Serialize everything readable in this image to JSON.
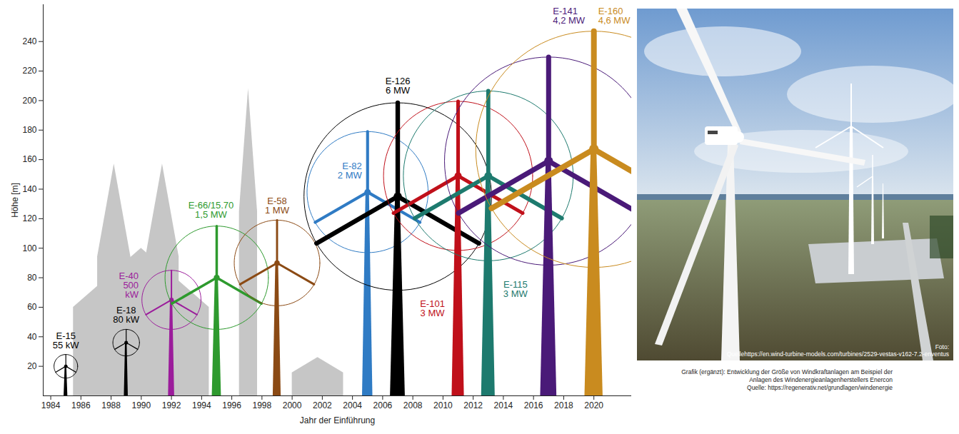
{
  "chart_data": {
    "type": "turbines",
    "x_label": "Jahr der Einführung",
    "y_label": "Höhe [m]",
    "categories": [
      "E-15",
      "E-18",
      "E-40",
      "E-66/15.70",
      "E-58",
      "E-82",
      "E-126",
      "E-101",
      "E-115",
      "E-141",
      "E-160"
    ],
    "power_labels": [
      "55 kW",
      "80 kW",
      "500 kW",
      "1,5 MW",
      "1 MW",
      "2 MW",
      "6 MW",
      "3 MW",
      "3 MW",
      "4,2 MW",
      "4,6 MW"
    ],
    "x": [
      1985,
      1989,
      1992,
      1995,
      1999,
      2005,
      2007,
      2011,
      2013,
      2017,
      2020
    ],
    "values": [
      20,
      36,
      65,
      80,
      90,
      138,
      135,
      149,
      149,
      159,
      167
    ],
    "rotor_diameter": [
      16,
      18,
      40,
      70,
      58,
      82,
      127,
      101,
      115,
      141,
      160
    ],
    "colors": [
      "#000000",
      "#000000",
      "#9b1c9b",
      "#2e9a2e",
      "#8b4a14",
      "#2f7bc4",
      "#000000",
      "#c0101a",
      "#1d7a6e",
      "#4a1a78",
      "#c98b1f"
    ],
    "xlim": [
      1983.5,
      2022.5
    ],
    "xticks": [
      1984,
      1986,
      1988,
      1990,
      1992,
      1994,
      1996,
      1998,
      2000,
      2002,
      2004,
      2006,
      2008,
      2010,
      2012,
      2014,
      2016,
      2018,
      2020
    ],
    "ylim": [
      0,
      265
    ],
    "yticks": [
      20,
      40,
      60,
      80,
      100,
      120,
      140,
      160,
      180,
      200,
      220,
      240
    ],
    "silhouettes": [
      {
        "x1": 1985.5,
        "x2": 1994.5,
        "height": 100
      },
      {
        "x1": 1987.1,
        "x2": 1989.3,
        "height": 157
      },
      {
        "x1": 1990.3,
        "x2": 1992.5,
        "height": 157
      },
      {
        "x1": 1996.5,
        "x2": 1997.7,
        "height": 208
      },
      {
        "x1": 2000.0,
        "x2": 2003.4,
        "height": 26
      }
    ]
  },
  "photo": {
    "credit": "Foto:",
    "source": "Quellehttps://en.wind-turbine-models.com/turbines/2529-vestas-v162-7.2-enventus"
  },
  "caption": {
    "text": "Grafik (ergänzt): Entwicklung der Größe von Windkraftanlagen am Beispiel der Anlagen des Windenergieanlagenherstellers Enercon",
    "source": "Quelle: https://regenerativ.net/grundlagen/windenergie"
  }
}
